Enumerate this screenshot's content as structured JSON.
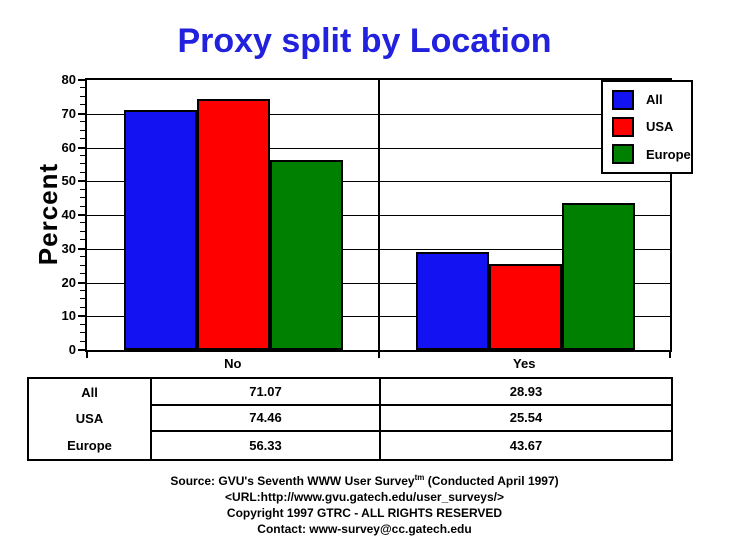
{
  "title": "Proxy split by Location",
  "colors": {
    "title_blue": "#2121de",
    "all_blue": "#1212f2",
    "usa_red": "#ff0000",
    "europe_green": "#008000",
    "axis_black": "#000000"
  },
  "chart_data": {
    "type": "bar",
    "title": "Proxy split by Location",
    "categories": [
      "No",
      "Yes"
    ],
    "series": [
      {
        "name": "All",
        "color": "#1212f2",
        "values": [
          71.07,
          28.93
        ]
      },
      {
        "name": "USA",
        "color": "#ff0000",
        "values": [
          74.46,
          25.54
        ]
      },
      {
        "name": "Europe",
        "color": "#008000",
        "values": [
          56.33,
          43.67
        ]
      }
    ],
    "xlabel": "",
    "ylabel": "Percent",
    "ylim": [
      0,
      80
    ],
    "ytick_step": 10,
    "minor_tick_step": 2.5,
    "grid": true,
    "legend_position": "top-right",
    "table": {
      "row_labels": [
        "All",
        "USA",
        "Europe"
      ],
      "columns": [
        "No",
        "Yes"
      ],
      "values": [
        [
          71.07,
          28.93
        ],
        [
          74.46,
          25.54
        ],
        [
          56.33,
          43.67
        ]
      ]
    }
  },
  "footer": {
    "source_prefix": "Source: GVU's Seventh WWW User Survey",
    "source_sup": "tm",
    "source_suffix": " (Conducted April 1997)",
    "url_line": "<URL:http://www.gvu.gatech.edu/user_surveys/>",
    "copyright_line": "Copyright 1997 GTRC - ALL RIGHTS RESERVED",
    "contact_line": "Contact: www-survey@cc.gatech.edu"
  }
}
